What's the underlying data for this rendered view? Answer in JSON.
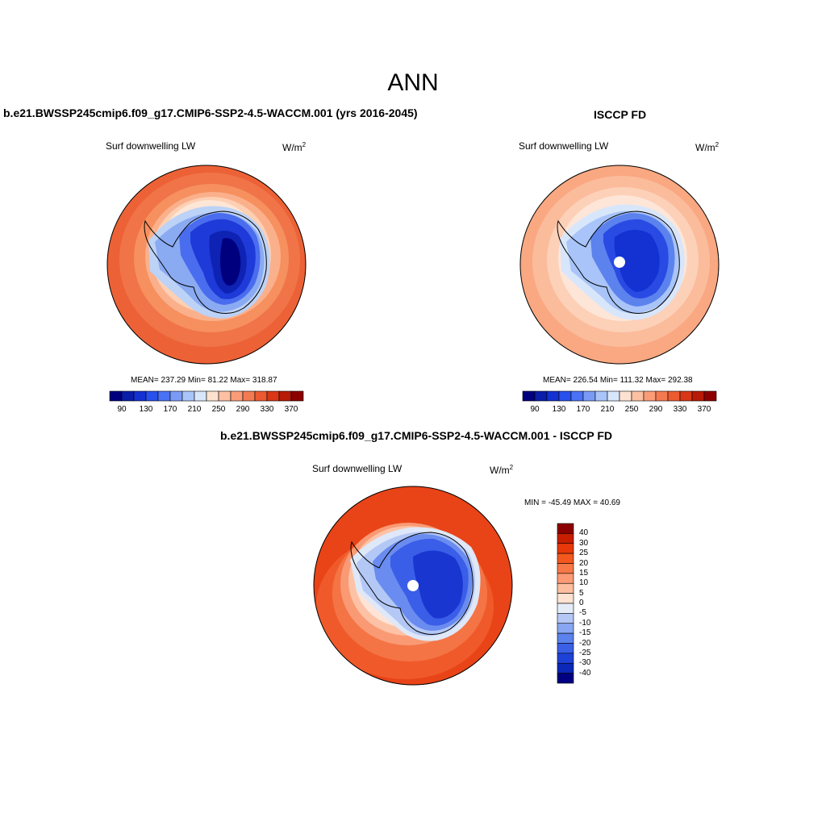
{
  "title": "ANN",
  "panels": [
    {
      "heading": "b.e21.BWSSP245cmip6.f09_g17.CMIP6-SSP2-4.5-WACCM.001 (yrs 2016-2045)",
      "variable": "Surf downwelling LW",
      "units_base": "W/m",
      "units_exp": "2",
      "stats": "MEAN= 237.29  Min=  81.22  Max= 318.87",
      "colors": [
        "#00007f",
        "#0a1ea8",
        "#1432d2",
        "#2850ec",
        "#4a72f5",
        "#7a9af5",
        "#a8c4f8",
        "#d8e6fb",
        "#fde2d0",
        "#fcc0a2",
        "#fa9c78",
        "#f47a52",
        "#ec5a30",
        "#d83818",
        "#b81a08",
        "#8c0000"
      ],
      "ticks": [
        "90",
        "130",
        "170",
        "210",
        "250",
        "290",
        "330",
        "370"
      ]
    },
    {
      "heading": "ISCCP FD",
      "variable": "Surf downwelling LW",
      "units_base": "W/m",
      "units_exp": "2",
      "stats": "MEAN= 226.54  Min= 111.32  Max= 292.38",
      "colors": [
        "#00007f",
        "#0a1ea8",
        "#1432d2",
        "#2850ec",
        "#4a72f5",
        "#7a9af5",
        "#a8c4f8",
        "#d8e6fb",
        "#fde2d0",
        "#fcc0a2",
        "#fa9c78",
        "#f47a52",
        "#ec5a30",
        "#d83818",
        "#b81a08",
        "#8c0000"
      ],
      "ticks": [
        "90",
        "130",
        "170",
        "210",
        "250",
        "290",
        "330",
        "370"
      ]
    },
    {
      "heading": "b.e21.BWSSP245cmip6.f09_g17.CMIP6-SSP2-4.5-WACCM.001 - ISCCP FD",
      "variable": "Surf downwelling LW",
      "units_base": "W/m",
      "units_exp": "2",
      "stats": "MIN = -45.49 MAX =  40.69",
      "colors": [
        "#8c0000",
        "#c81e00",
        "#e8380a",
        "#f4581e",
        "#f87848",
        "#fb9a74",
        "#fdbea0",
        "#fee2d2",
        "#e4ecf8",
        "#b4c8f6",
        "#88a6f2",
        "#5c82ee",
        "#3a60e8",
        "#1e42d8",
        "#0c28b8",
        "#000080"
      ],
      "ticks": [
        "40",
        "30",
        "25",
        "20",
        "15",
        "10",
        "5",
        "0",
        "-5",
        "-10",
        "-15",
        "-20",
        "-25",
        "-30",
        "-40"
      ]
    }
  ],
  "colors": {
    "antarctica_outline": "#000000",
    "background": "#ffffff"
  }
}
